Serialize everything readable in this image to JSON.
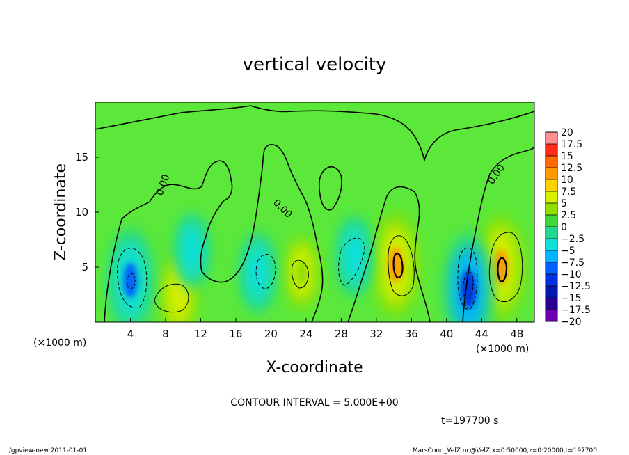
{
  "chart_data": {
    "type": "heatmap",
    "title": "vertical velocity",
    "xlabel": "X-coordinate",
    "ylabel": "Z-coordinate",
    "x_unit": "(×1000 m)",
    "y_unit": "(×1000 m)",
    "xlim": [
      0,
      50
    ],
    "ylim": [
      0,
      20
    ],
    "x_ticks": [
      "4",
      "8",
      "12",
      "16",
      "20",
      "24",
      "28",
      "32",
      "36",
      "40",
      "44",
      "48"
    ],
    "y_ticks": [
      "5",
      "10",
      "15"
    ],
    "colorbar_ticks": [
      "20",
      "17.5",
      "15",
      "12.5",
      "10",
      "7.5",
      "5",
      "2.5",
      "0",
      "-2.5",
      "-5",
      "-7.5",
      "-10",
      "-12.5",
      "-15",
      "-17.5",
      "-20"
    ],
    "contour_labels": [
      "0.00",
      "0.00",
      "0.00"
    ],
    "contour_interval_text": "CONTOUR INTERVAL = 5.000E+00",
    "time_text": "t=197700 s",
    "grid": false,
    "legend_position": "right",
    "colors": {
      "cb_20": "#f07a8c",
      "cb_17_5": "#ff9090",
      "cb_15": "#ff2a1a",
      "cb_12_5": "#ff6a00",
      "cb_10": "#ff9900",
      "cb_7_5": "#ffd200",
      "cb_5": "#d7ef00",
      "cb_2_5": "#8fe000",
      "cb_0": "#3ed83a",
      "cb_m2_5": "#20d890",
      "cb_m5": "#10e0d8",
      "cb_m7_5": "#00b4ff",
      "cb_m10": "#0060ff",
      "cb_m12_5": "#0030e0",
      "cb_m15": "#0018b0",
      "cb_m17_5": "#2a0090",
      "cb_m20": "#6a00b0",
      "field_base": "#5ce83a"
    },
    "features": [
      {
        "kind": "updraft",
        "x": 9.5,
        "z": 2.5,
        "value": 5
      },
      {
        "kind": "updraft",
        "x": 23.5,
        "z": 4.5,
        "value": 3
      },
      {
        "kind": "updraft",
        "x": 34.2,
        "z": 5.2,
        "value": 10
      },
      {
        "kind": "updraft",
        "x": 46.2,
        "z": 5.0,
        "value": 10
      },
      {
        "kind": "downdraft",
        "x": 4.0,
        "z": 3.8,
        "value": -10
      },
      {
        "kind": "downdraft",
        "x": 11.0,
        "z": 6.5,
        "value": -4
      },
      {
        "kind": "downdraft",
        "x": 18.5,
        "z": 4.5,
        "value": -5
      },
      {
        "kind": "downdraft",
        "x": 29.5,
        "z": 6.0,
        "value": -5
      },
      {
        "kind": "downdraft",
        "x": 42.5,
        "z": 3.0,
        "value": -12
      }
    ]
  },
  "footer": {
    "left": "./gpview-new   2011-01-01",
    "right": "MarsCond_VelZ.nc@VelZ,x=0:50000,z=0:20000,t=197700"
  }
}
